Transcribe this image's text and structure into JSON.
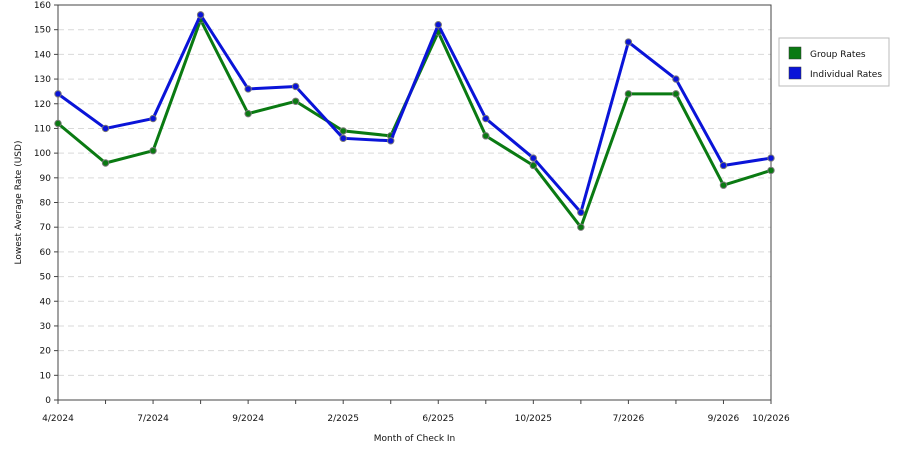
{
  "chart_data": {
    "type": "line",
    "xlabel": "Month of Check In",
    "ylabel": "Lowest Average Rate (USD)",
    "ylim": [
      0,
      160
    ],
    "y_ticks": [
      0,
      10,
      20,
      30,
      40,
      50,
      60,
      70,
      80,
      90,
      100,
      110,
      120,
      130,
      140,
      150,
      160
    ],
    "x_tick_labels": [
      "4/2024",
      "7/2024",
      "9/2024",
      "2/2025",
      "6/2025",
      "10/2025",
      "7/2026",
      "9/2026",
      "10/2026"
    ],
    "grid": "horizontal dashed",
    "legend_placement": "right",
    "series": [
      {
        "name": "Group Rates",
        "color": "#0a7a12",
        "values": [
          112,
          96,
          101,
          154,
          116,
          121,
          109,
          107,
          149,
          107,
          95,
          70,
          124,
          124,
          87,
          93
        ]
      },
      {
        "name": "Individual Rates",
        "color": "#0a14d8",
        "values": [
          124,
          110,
          114,
          156,
          126,
          127,
          106,
          105,
          152,
          114,
          98,
          76,
          145,
          130,
          95,
          98
        ]
      }
    ]
  }
}
